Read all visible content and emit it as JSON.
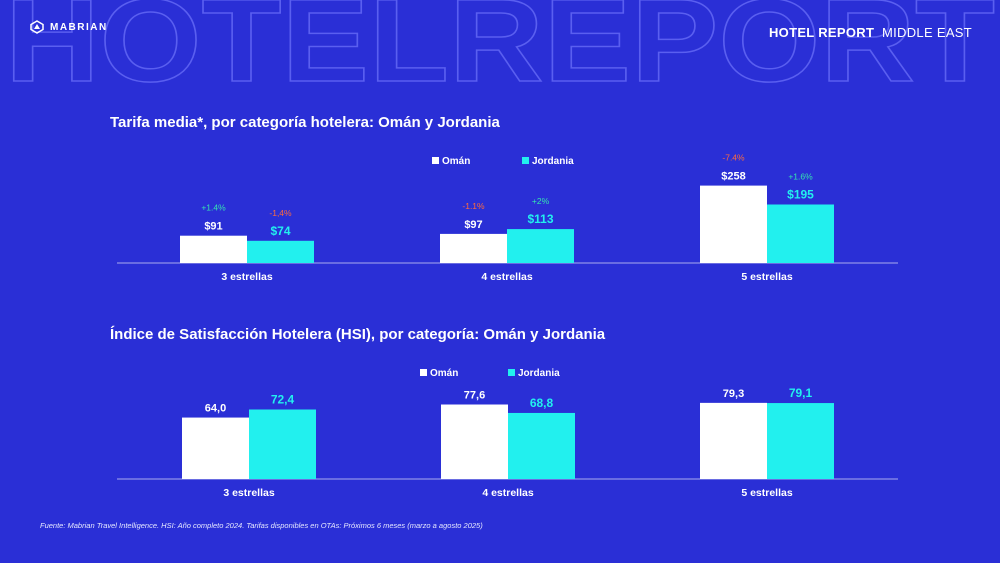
{
  "header": {
    "logo_text": "MABRIAN",
    "report_bold": "HOTEL REPORT",
    "region": "MIDDLE EAST",
    "background_word": "HOTELREPORT"
  },
  "colors": {
    "background": "#2a2fd6",
    "oman": "#ffffff",
    "jordania": "#22f0ee",
    "up": "#35e6b0",
    "down": "#ff6b3d"
  },
  "chart_data": [
    {
      "type": "bar",
      "title": "Tarifa media*, por categoría hotelera: Omán y Jordania",
      "categories": [
        "3 estrellas",
        "4 estrellas",
        "5 estrellas"
      ],
      "series": [
        {
          "name": "Omán",
          "values": [
            91,
            97,
            258
          ],
          "labels": [
            "$91",
            "$97",
            "$258"
          ],
          "changes": [
            "+1.4%",
            "-1.1%",
            "-7.4%"
          ],
          "change_dir": [
            "up",
            "down",
            "down"
          ]
        },
        {
          "name": "Jordania",
          "values": [
            74,
            113,
            195
          ],
          "labels": [
            "$74",
            "$113",
            "$195"
          ],
          "changes": [
            "-1,4%",
            "+2%",
            "+1.6%"
          ],
          "change_dir": [
            "down",
            "up",
            "up"
          ]
        }
      ],
      "ylim": [
        0,
        440
      ],
      "legend": "top-center",
      "grid": false
    },
    {
      "type": "bar",
      "title": "Índice de Satisfacción Hotelera (HSI), por categoría: Omán y Jordania",
      "categories": [
        "3 estrellas",
        "4 estrellas",
        "5 estrellas"
      ],
      "series": [
        {
          "name": "Omán",
          "values": [
            64.0,
            77.6,
            79.3
          ],
          "labels": [
            "64,0",
            "77,6",
            "79,3"
          ]
        },
        {
          "name": "Jordania",
          "values": [
            72.4,
            68.8,
            79.1
          ],
          "labels": [
            "72,4",
            "68,8",
            "79,1"
          ]
        }
      ],
      "ylim": [
        0,
        100
      ],
      "legend": "top-center",
      "grid": false
    }
  ],
  "source": "Fuente: Mabrian Travel Intelligence. HSI: Año completo 2024. Tarifas disponibles en OTAs: Próximos 6 meses (marzo a agosto 2025)"
}
